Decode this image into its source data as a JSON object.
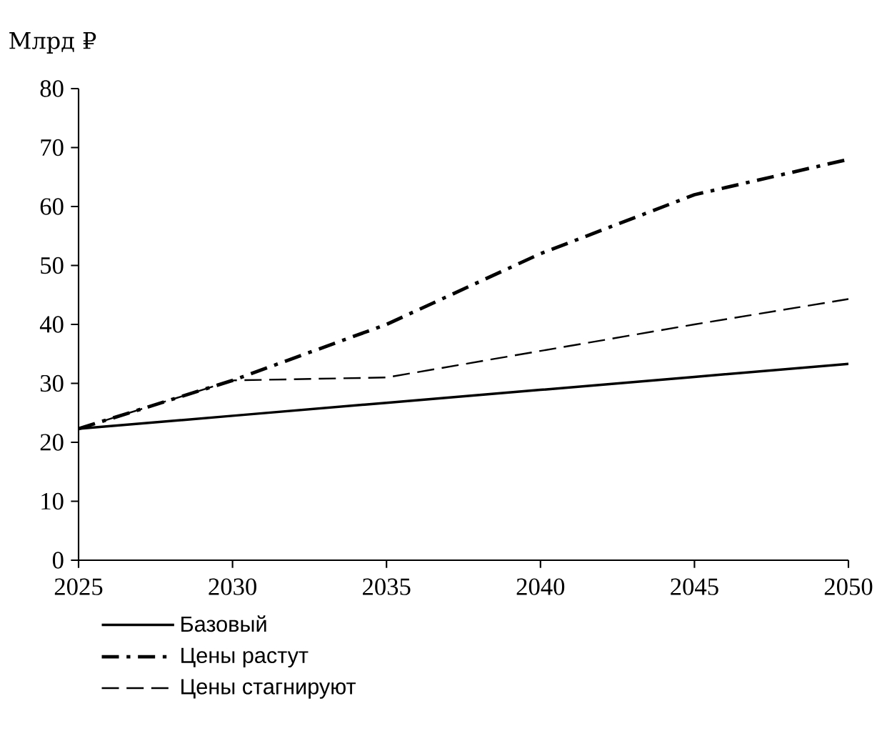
{
  "chart_data": {
    "type": "line",
    "ylabel": "Млрд ₽",
    "x": [
      2025,
      2030,
      2035,
      2040,
      2045,
      2050
    ],
    "series": [
      {
        "name": "Базовый",
        "color": "#000000",
        "line_style": "solid",
        "values": [
          22.3,
          24.5,
          26.7,
          28.9,
          31.1,
          33.3
        ]
      },
      {
        "name": "Цены растут",
        "color": "#000000",
        "line_style": "dashdot",
        "values": [
          22.3,
          30.5,
          40,
          52,
          62,
          68
        ]
      },
      {
        "name": "Цены стагнируют",
        "color": "#000000",
        "line_style": "dashed",
        "values": [
          22.3,
          30.5,
          31,
          35.5,
          40,
          44.3
        ]
      }
    ],
    "xlim": [
      2025,
      2050
    ],
    "xticks": [
      2025,
      2030,
      2035,
      2040,
      2045,
      2050
    ],
    "ylim": [
      0,
      80
    ],
    "yticks": [
      0,
      10,
      20,
      30,
      40,
      50,
      60,
      70,
      80
    ],
    "grid": false,
    "legend": "bottom",
    "marker": "none"
  }
}
